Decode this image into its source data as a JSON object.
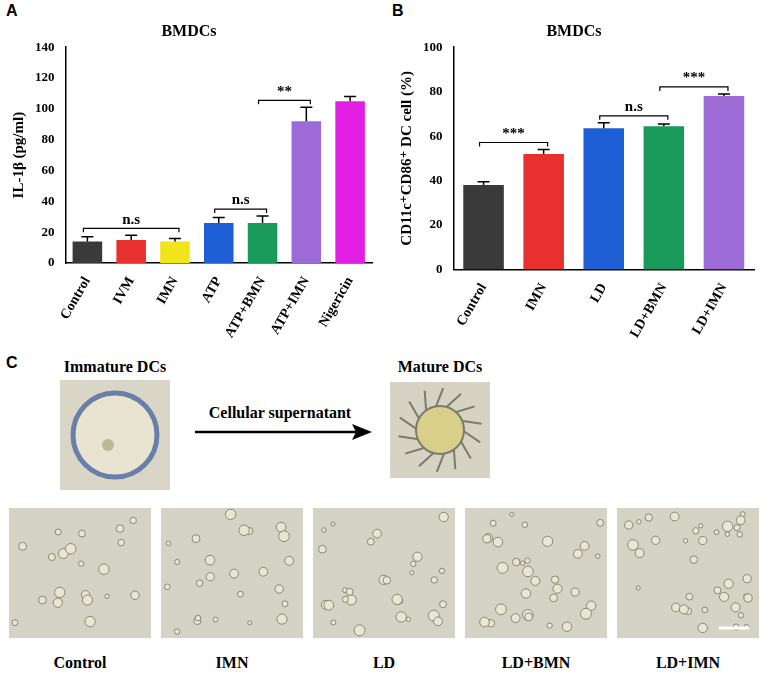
{
  "chart_data": [
    {
      "type": "bar",
      "panel_label": "A",
      "title": "BMDCs",
      "y_label": "IL-1β (pg/ml)",
      "categories": [
        "Control",
        "IVM",
        "IMN",
        "ATP",
        "ATP+BMN",
        "ATP+IMN",
        "Nigericin"
      ],
      "values": [
        14,
        15,
        14,
        26,
        26,
        92,
        105
      ],
      "errors": [
        3,
        3,
        2,
        3.5,
        4.5,
        9,
        3
      ],
      "colors": [
        "#3a3a3a",
        "#e8312f",
        "#f2e41a",
        "#1f5fd6",
        "#1a9a5a",
        "#9d6bd6",
        "#e31ee3"
      ],
      "ylim": [
        0,
        140
      ],
      "yticks": [
        0,
        20,
        40,
        60,
        80,
        100,
        120,
        140
      ],
      "grid": false,
      "annotations": [
        {
          "text": "n.s",
          "from": "Control",
          "to": "IMN"
        },
        {
          "text": "n.s",
          "from": "ATP",
          "to": "ATP+BMN"
        },
        {
          "text": "**",
          "from": "ATP+BMN",
          "to": "ATP+IMN"
        }
      ]
    },
    {
      "type": "bar",
      "panel_label": "B",
      "title": "BMDCs",
      "y_label": "CD11c⁺CD86⁺ DC cell (%)",
      "categories": [
        "Control",
        "IMN",
        "LD",
        "LD+BMN",
        "LD+IMN"
      ],
      "values": [
        38,
        52,
        63.5,
        64.5,
        78
      ],
      "errors": [
        1.5,
        2,
        2.5,
        1,
        1
      ],
      "colors": [
        "#3a3a3a",
        "#e8312f",
        "#1f5fd6",
        "#1a9a5a",
        "#9d6bd6"
      ],
      "ylim": [
        0,
        100
      ],
      "yticks": [
        0,
        20,
        40,
        60,
        80,
        100
      ],
      "grid": false,
      "annotations": [
        {
          "text": "***",
          "from": "Control",
          "to": "IMN"
        },
        {
          "text": "n.s",
          "from": "LD",
          "to": "LD+BMN"
        },
        {
          "text": "***",
          "from": "LD+BMN",
          "to": "LD+IMN"
        }
      ]
    }
  ],
  "panel_c": {
    "panel_label": "C",
    "top": {
      "left_label": "Immature DCs",
      "arrow_label": "Cellular supernatant",
      "right_label": "Mature DCs"
    },
    "images": [
      "Control",
      "IMN",
      "LD",
      "LD+BMN",
      "LD+IMN"
    ]
  }
}
